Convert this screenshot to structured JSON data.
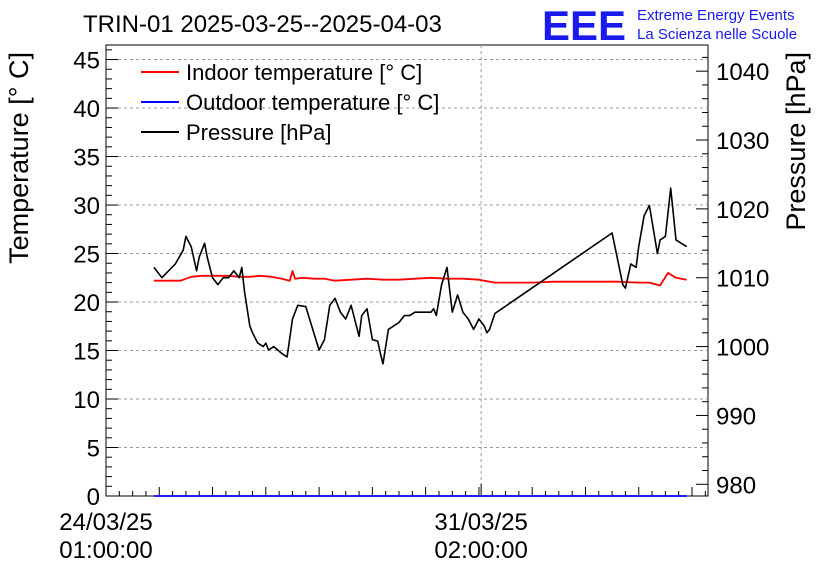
{
  "chart_data": {
    "type": "line",
    "title": "TRIN-01 2025-03-25--2025-04-03",
    "logo": {
      "mark": "EEE",
      "line1": "Extreme Energy Events",
      "line2": "La Scienza nelle Scuole"
    },
    "ylabel_left": "Temperature [° C]",
    "ylabel_right": "Pressure [hPa]",
    "x_unit": "days since 24/03/25 01:00:00",
    "xlim": [
      0,
      11.3
    ],
    "ylim_left": [
      0,
      46.5
    ],
    "ylim_right": [
      978.3,
      1043.8
    ],
    "left_ticks": [
      0,
      5,
      10,
      15,
      20,
      25,
      30,
      35,
      40,
      45
    ],
    "right_ticks": [
      980,
      990,
      1000,
      1010,
      1020,
      1030,
      1040
    ],
    "x_ticks": [
      {
        "x": 0,
        "line1": "24/03/25",
        "line2": "01:00:00"
      },
      {
        "x": 7.0417,
        "line1": "31/03/25",
        "line2": "02:00:00"
      }
    ],
    "grid": true,
    "legend_position": "top-left",
    "colors": {
      "indoor": "#ff0000",
      "outdoor": "#0000ff",
      "pressure": "#000000"
    },
    "series": [
      {
        "name": "Indoor temperature [° C]",
        "axis": "left",
        "x": [
          0.9,
          1.2,
          1.4,
          1.6,
          1.8,
          2.0,
          2.3,
          2.5,
          2.7,
          2.9,
          3.1,
          3.3,
          3.45,
          3.5,
          3.55,
          3.7,
          3.9,
          4.1,
          4.3,
          4.6,
          4.9,
          5.2,
          5.5,
          5.8,
          6.1,
          6.4,
          6.7,
          7.0,
          7.3,
          7.6,
          8.0,
          8.4,
          8.8,
          9.2,
          9.6,
          10.0,
          10.2,
          10.4,
          10.55,
          10.7,
          10.9
        ],
        "y": [
          22.2,
          22.2,
          22.2,
          22.6,
          22.7,
          22.7,
          22.7,
          22.6,
          22.6,
          22.7,
          22.6,
          22.4,
          22.2,
          23.2,
          22.4,
          22.5,
          22.4,
          22.4,
          22.2,
          22.3,
          22.4,
          22.3,
          22.3,
          22.4,
          22.5,
          22.4,
          22.4,
          22.3,
          22.0,
          22.0,
          22.0,
          22.1,
          22.1,
          22.1,
          22.1,
          22.0,
          22.0,
          21.7,
          23.0,
          22.5,
          22.3
        ],
        "color": "#ff0000"
      },
      {
        "name": "Outdoor temperature [° C]",
        "axis": "left",
        "x": [
          0.9,
          10.9
        ],
        "y": [
          0,
          0
        ],
        "color": "#0000ff"
      },
      {
        "name": "Pressure [hPa]",
        "axis": "right",
        "x": [
          0.9,
          1.0,
          1.05,
          1.3,
          1.45,
          1.5,
          1.6,
          1.7,
          1.75,
          1.85,
          1.9,
          2.0,
          2.1,
          2.2,
          2.3,
          2.4,
          2.5,
          2.55,
          2.6,
          2.7,
          2.75,
          2.85,
          2.95,
          3.0,
          3.05,
          3.15,
          3.3,
          3.4,
          3.5,
          3.6,
          3.75,
          3.9,
          4.0,
          4.1,
          4.2,
          4.3,
          4.4,
          4.5,
          4.6,
          4.7,
          4.75,
          4.8,
          4.9,
          5.0,
          5.1,
          5.15,
          5.2,
          5.3,
          5.4,
          5.5,
          5.6,
          5.7,
          5.8,
          5.9,
          6.0,
          6.1,
          6.15,
          6.2,
          6.3,
          6.4,
          6.5,
          6.6,
          6.7,
          6.8,
          6.9,
          7.0,
          7.1,
          7.15,
          7.2,
          7.3,
          9.5,
          9.7,
          9.75,
          9.85,
          9.95,
          10.0,
          10.1,
          10.2,
          10.35,
          10.4,
          10.5,
          10.6,
          10.7,
          10.9
        ],
        "y": [
          1011.5,
          1010.5,
          1010,
          1012,
          1014,
          1016,
          1014.5,
          1011,
          1013,
          1015,
          1013,
          1010,
          1009,
          1010,
          1010,
          1011,
          1010,
          1011.5,
          1008,
          1003,
          1002,
          1000.5,
          1000,
          1000.5,
          999.5,
          1000,
          999,
          998.5,
          1004,
          1006,
          1005.8,
          1002,
          999.5,
          1001,
          1006,
          1007,
          1005,
          1004,
          1006,
          1003,
          1001.5,
          1004.5,
          1005.5,
          1001,
          1000.8,
          999,
          997.5,
          1002.5,
          1003,
          1003.5,
          1004.5,
          1004.5,
          1005,
          1005,
          1005,
          1005,
          1005.5,
          1004.5,
          1009,
          1011.5,
          1005,
          1007.5,
          1005,
          1004,
          1002.5,
          1004,
          1003,
          1002,
          1002.5,
          1004.8,
          1016.5,
          1009,
          1008.5,
          1012,
          1011.5,
          1014.5,
          1019,
          1020.5,
          1013.5,
          1015.5,
          1016,
          1023,
          1015.5,
          1014.5
        ],
        "color": "#000000"
      }
    ]
  }
}
